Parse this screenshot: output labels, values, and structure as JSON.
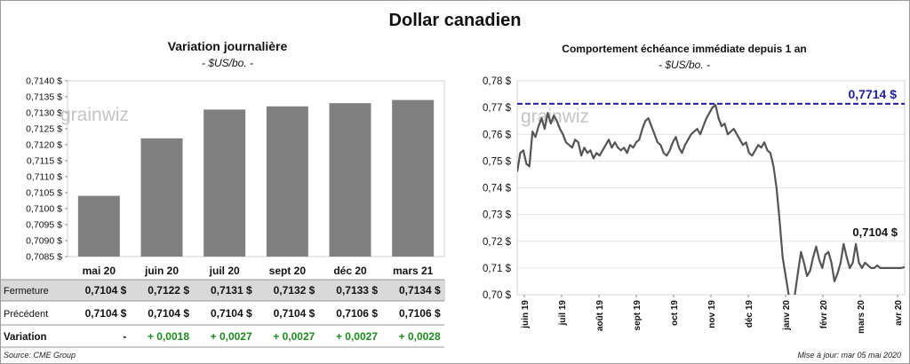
{
  "title": "Dollar canadien",
  "source": "Source: CME Group",
  "updated": "Mise à jour: mar 05 mai 2020",
  "watermark": "grainwiz",
  "colors": {
    "bar": "#808080",
    "line": "#555555",
    "ref": "#1f1fa0",
    "positive": "#1e8a1e",
    "table_shade": "#d9d9d9"
  },
  "chart_data": [
    {
      "type": "bar",
      "title": "Variation  journalière",
      "unit": "- $US/bo. -",
      "categories": [
        "mai 20",
        "juin 20",
        "juil 20",
        "sept 20",
        "déc 20",
        "mars 21"
      ],
      "values": [
        0.7104,
        0.7122,
        0.7131,
        0.7132,
        0.7133,
        0.7134
      ],
      "ylim": [
        0.7085,
        0.714
      ],
      "yticks": [
        "0,7085 $",
        "0,7090 $",
        "0,7095 $",
        "0,7100 $",
        "0,7105 $",
        "0,7110 $",
        "0,7115 $",
        "0,7120 $",
        "0,7125 $",
        "0,7130 $",
        "0,7135 $",
        "0,7140 $"
      ],
      "table": {
        "rows": [
          {
            "label": "Fermeture",
            "cells": [
              "0,7104  $",
              "0,7122  $",
              "0,7131  $",
              "0,7132  $",
              "0,7133  $",
              "0,7134  $"
            ]
          },
          {
            "label": "Précédent",
            "cells": [
              "0,7104 $",
              "0,7104 $",
              "0,7104 $",
              "0,7104 $",
              "0,7106 $",
              "0,7106 $"
            ]
          },
          {
            "label": "Variation",
            "cells": [
              "-",
              "+ 0,0018",
              "+ 0,0027",
              "+ 0,0027",
              "+ 0,0027",
              "+ 0,0028"
            ]
          }
        ]
      }
    },
    {
      "type": "line",
      "title": "Comportement échéance immédiate depuis 1 an",
      "unit": "- $US/bo. -",
      "ylim": [
        0.7,
        0.78
      ],
      "yticks": [
        "0,70 $",
        "0,71 $",
        "0,72 $",
        "0,73 $",
        "0,74 $",
        "0,75 $",
        "0,76 $",
        "0,77 $",
        "0,78 $"
      ],
      "xticks": [
        "juin 19",
        "juil 19",
        "août 19",
        "sept 19",
        "oct 19",
        "nov 19",
        "déc 19",
        "janv 20",
        "févr 20",
        "mars 20",
        "avr 20"
      ],
      "reference": {
        "value": 0.7714,
        "label": "0,7714 $"
      },
      "last": {
        "value": 0.7104,
        "label": "0,7104 $"
      },
      "x": [
        0,
        2,
        4,
        6,
        8,
        10,
        12,
        14,
        16,
        18,
        20,
        22,
        24,
        26,
        28,
        30,
        32,
        34,
        36,
        38,
        40,
        42,
        44,
        46,
        48,
        50,
        52,
        54,
        56,
        58,
        60,
        62,
        64,
        66,
        68,
        70,
        72,
        74,
        76,
        78,
        80,
        82,
        84,
        86,
        88,
        90,
        92,
        94,
        96,
        98,
        100,
        102,
        104,
        106,
        108,
        110,
        112,
        114,
        116,
        118,
        120,
        122,
        124,
        126,
        128,
        130,
        132,
        134,
        136,
        138,
        140,
        142,
        144,
        146,
        148,
        150,
        152,
        154,
        156,
        158,
        160,
        162,
        164,
        166,
        168,
        170,
        172,
        174,
        176,
        178,
        180,
        182,
        184,
        186,
        188,
        190,
        192,
        194,
        196,
        198,
        200,
        202,
        204,
        206,
        208,
        210,
        212,
        214,
        216,
        218,
        220,
        222,
        224,
        226,
        228,
        230,
        232,
        234,
        236,
        238,
        240,
        242,
        244,
        246,
        248,
        250,
        252,
        254
      ],
      "values": [
        0.746,
        0.753,
        0.754,
        0.749,
        0.748,
        0.761,
        0.759,
        0.763,
        0.766,
        0.762,
        0.768,
        0.764,
        0.767,
        0.765,
        0.762,
        0.76,
        0.757,
        0.756,
        0.755,
        0.758,
        0.757,
        0.752,
        0.755,
        0.753,
        0.754,
        0.751,
        0.753,
        0.752,
        0.754,
        0.756,
        0.758,
        0.755,
        0.757,
        0.755,
        0.754,
        0.755,
        0.753,
        0.756,
        0.755,
        0.757,
        0.758,
        0.762,
        0.765,
        0.766,
        0.763,
        0.76,
        0.757,
        0.756,
        0.753,
        0.752,
        0.754,
        0.757,
        0.759,
        0.755,
        0.753,
        0.756,
        0.758,
        0.76,
        0.761,
        0.762,
        0.76,
        0.763,
        0.766,
        0.768,
        0.77,
        0.771,
        0.766,
        0.763,
        0.764,
        0.76,
        0.761,
        0.762,
        0.76,
        0.758,
        0.756,
        0.757,
        0.753,
        0.752,
        0.754,
        0.756,
        0.755,
        0.757,
        0.754,
        0.753,
        0.748,
        0.74,
        0.728,
        0.714,
        0.707,
        0.7,
        0.694,
        0.7,
        0.708,
        0.716,
        0.712,
        0.707,
        0.709,
        0.714,
        0.718,
        0.713,
        0.71,
        0.715,
        0.716,
        0.712,
        0.705,
        0.708,
        0.712,
        0.719,
        0.714,
        0.71,
        0.712,
        0.719,
        0.712,
        0.71,
        0.712,
        0.711,
        0.71,
        0.71,
        0.711,
        0.71,
        0.71,
        0.71,
        0.71,
        0.71,
        0.71,
        0.71,
        0.71,
        0.7104
      ]
    }
  ]
}
